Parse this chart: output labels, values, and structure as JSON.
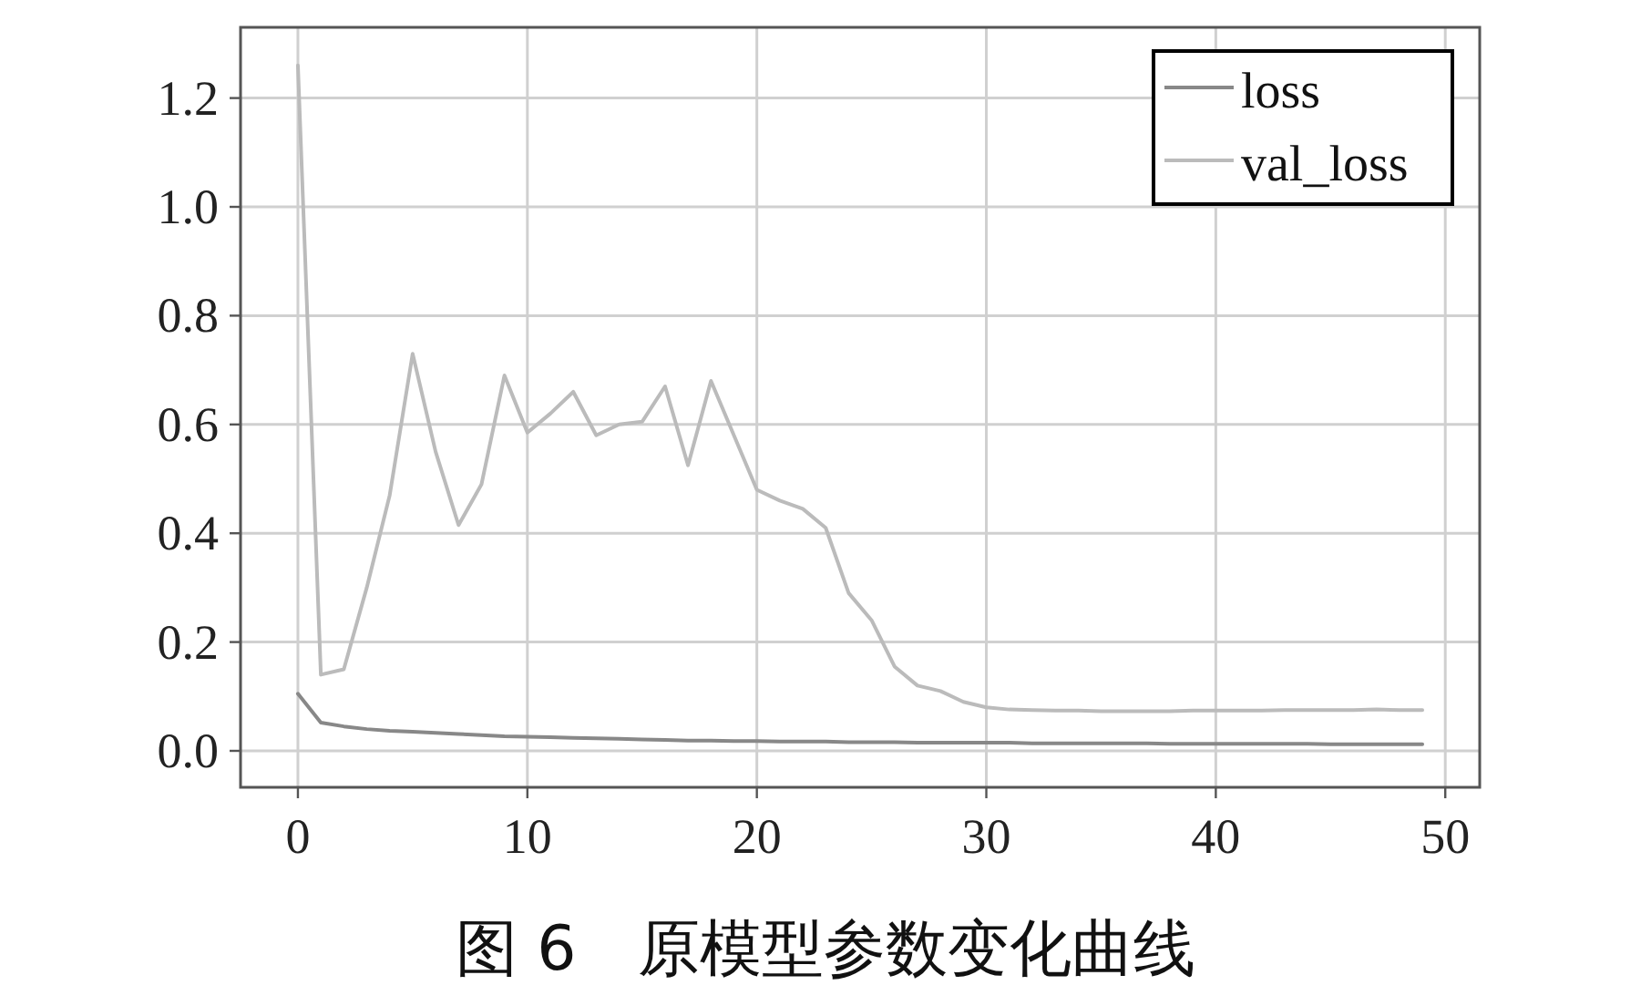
{
  "chart_data": {
    "type": "line",
    "title": "图 6　原模型参数变化曲线",
    "x": [
      0,
      1,
      2,
      3,
      4,
      5,
      6,
      7,
      8,
      9,
      10,
      11,
      12,
      13,
      14,
      15,
      16,
      17,
      18,
      19,
      20,
      21,
      22,
      23,
      24,
      25,
      26,
      27,
      28,
      29,
      30,
      31,
      32,
      33,
      34,
      35,
      36,
      37,
      38,
      39,
      40,
      41,
      42,
      43,
      44,
      45,
      46,
      47,
      48,
      49
    ],
    "series": [
      {
        "name": "loss",
        "color": "#888888",
        "values": [
          0.105,
          0.052,
          0.045,
          0.04,
          0.037,
          0.035,
          0.033,
          0.031,
          0.029,
          0.027,
          0.026,
          0.025,
          0.024,
          0.023,
          0.022,
          0.021,
          0.02,
          0.019,
          0.019,
          0.018,
          0.018,
          0.017,
          0.017,
          0.017,
          0.016,
          0.016,
          0.016,
          0.015,
          0.015,
          0.015,
          0.015,
          0.015,
          0.014,
          0.014,
          0.014,
          0.014,
          0.014,
          0.014,
          0.013,
          0.013,
          0.013,
          0.013,
          0.013,
          0.013,
          0.013,
          0.012,
          0.012,
          0.012,
          0.012,
          0.012
        ]
      },
      {
        "name": "val_loss",
        "color": "#bbbbbb",
        "values": [
          1.26,
          0.14,
          0.15,
          0.3,
          0.47,
          0.73,
          0.55,
          0.415,
          0.49,
          0.69,
          0.585,
          0.62,
          0.66,
          0.58,
          0.6,
          0.605,
          0.67,
          0.525,
          0.68,
          0.58,
          0.48,
          0.46,
          0.445,
          0.41,
          0.29,
          0.24,
          0.155,
          0.12,
          0.11,
          0.09,
          0.08,
          0.076,
          0.075,
          0.074,
          0.074,
          0.073,
          0.073,
          0.073,
          0.073,
          0.074,
          0.074,
          0.074,
          0.074,
          0.075,
          0.075,
          0.075,
          0.075,
          0.076,
          0.075,
          0.075
        ]
      }
    ],
    "xlim": [
      -2.5,
      51.5
    ],
    "ylim": [
      -0.067,
      1.33
    ],
    "xticks": [
      0,
      10,
      20,
      30,
      40,
      50
    ],
    "yticks": [
      {
        "value": 0,
        "label": "0.0"
      },
      0.2,
      0.4,
      0.6,
      0.8,
      {
        "value": 1,
        "label": "1.0"
      },
      1.2
    ],
    "grid": true,
    "legend": "top right"
  }
}
